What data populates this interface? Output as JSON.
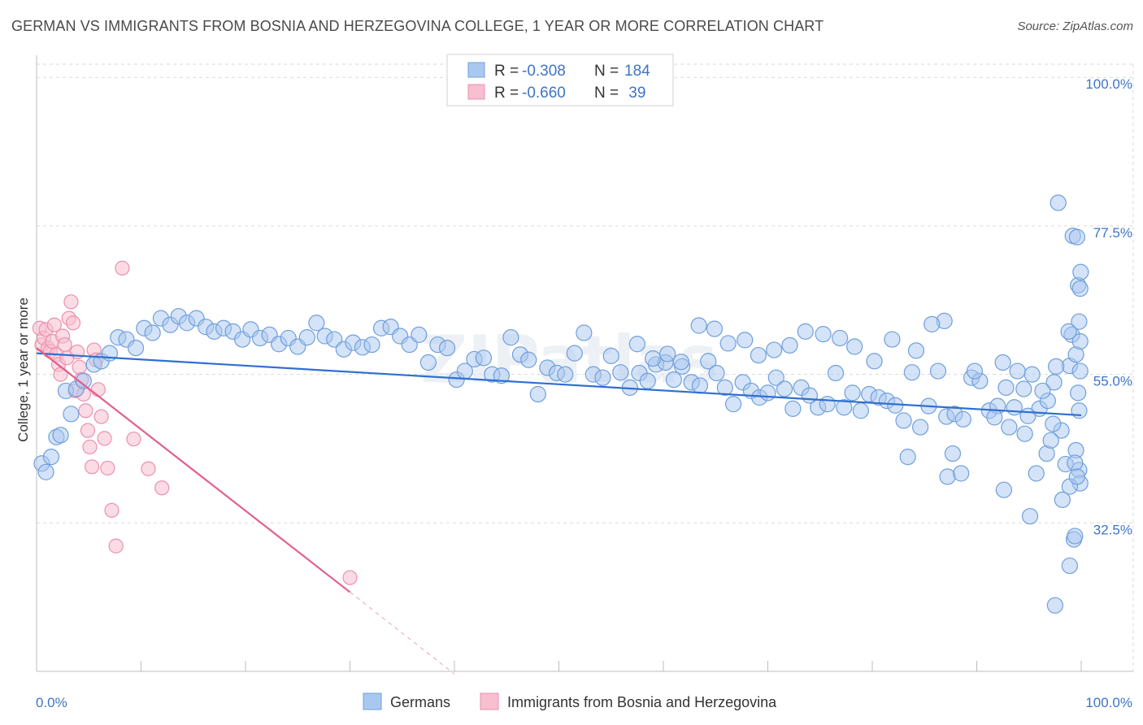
{
  "title": "GERMAN VS IMMIGRANTS FROM BOSNIA AND HERZEGOVINA COLLEGE, 1 YEAR OR MORE CORRELATION CHART",
  "source": "Source: ZipAtlas.com",
  "watermark": "ZIPatlas",
  "colors": {
    "blue_fill": "#a9c8f0",
    "blue_stroke": "#6f9fdc",
    "blue_line": "#2f6fd0",
    "pink_fill": "#f7bfd0",
    "pink_stroke": "#ec8fae",
    "pink_line": "#e2608d",
    "axis_text": "#3f74c6",
    "grid": "#d9d9d9"
  },
  "legend": {
    "rows": [
      {
        "r_label": "R =",
        "r_value": "-0.308",
        "n_label": "N =",
        "n_value": "184"
      },
      {
        "r_label": "R =",
        "r_value": "-0.660",
        "n_label": "N =",
        "n_value": " 39"
      }
    ]
  },
  "bottom_legend": [
    "Germans",
    "Immigrants from Bosnia and Herzegovina"
  ],
  "chart_data": {
    "type": "scatter",
    "title": "GERMAN VS IMMIGRANTS FROM BOSNIA AND HERZEGOVINA COLLEGE, 1 YEAR OR MORE CORRELATION CHART",
    "xlabel": "",
    "ylabel": "College, 1 year or more",
    "xlim": [
      0,
      100
    ],
    "ylim": [
      10,
      102
    ],
    "x_tick_labels": [
      "0.0%",
      "100.0%"
    ],
    "y_ticks": [
      100,
      77.5,
      55,
      32.5
    ],
    "y_tick_labels": [
      "100.0%",
      "77.5%",
      "55.0%",
      "32.5%"
    ],
    "legend_position": "top-center",
    "series": [
      {
        "name": "Germans",
        "color": "#a9c8f0",
        "trend": {
          "x": [
            0,
            100
          ],
          "y": [
            58.2,
            48.8
          ]
        },
        "points": [
          [
            0.5,
            41.5
          ],
          [
            0.9,
            40.2
          ],
          [
            1.4,
            42.5
          ],
          [
            1.9,
            45.5
          ],
          [
            2.3,
            45.8
          ],
          [
            2.8,
            52.5
          ],
          [
            3.3,
            49
          ],
          [
            3.8,
            52.8
          ],
          [
            4.5,
            54
          ],
          [
            5.5,
            56.5
          ],
          [
            6.2,
            57
          ],
          [
            7,
            58.2
          ],
          [
            7.8,
            60.6
          ],
          [
            8.6,
            60.3
          ],
          [
            9.5,
            59
          ],
          [
            10.3,
            62
          ],
          [
            11.1,
            61.3
          ],
          [
            11.9,
            63.5
          ],
          [
            12.8,
            62.5
          ],
          [
            13.6,
            63.8
          ],
          [
            14.4,
            62.8
          ],
          [
            15.3,
            63.5
          ],
          [
            16.2,
            62.2
          ],
          [
            17,
            61.5
          ],
          [
            17.9,
            62
          ],
          [
            18.8,
            61.5
          ],
          [
            19.7,
            60.3
          ],
          [
            20.5,
            61.8
          ],
          [
            21.4,
            60.5
          ],
          [
            22.3,
            61
          ],
          [
            23.2,
            59.6
          ],
          [
            24.1,
            60.5
          ],
          [
            25,
            59.2
          ],
          [
            25.9,
            60.6
          ],
          [
            26.8,
            62.8
          ],
          [
            27.6,
            60.8
          ],
          [
            28.5,
            60.3
          ],
          [
            29.4,
            58.8
          ],
          [
            30.3,
            59.8
          ],
          [
            31.2,
            59.1
          ],
          [
            32.1,
            59.5
          ],
          [
            33,
            62
          ],
          [
            33.9,
            62.2
          ],
          [
            34.8,
            60.8
          ],
          [
            35.7,
            59.5
          ],
          [
            36.6,
            61
          ],
          [
            37.5,
            56.8
          ],
          [
            38.4,
            59.5
          ],
          [
            39.3,
            59
          ],
          [
            40.2,
            54.2
          ],
          [
            41,
            55.5
          ],
          [
            41.9,
            57.3
          ],
          [
            42.8,
            57.5
          ],
          [
            43.6,
            55
          ],
          [
            44.5,
            54.8
          ],
          [
            45.4,
            60.6
          ],
          [
            46.3,
            58
          ],
          [
            47.1,
            57.2
          ],
          [
            48,
            52
          ],
          [
            48.9,
            56
          ],
          [
            49.8,
            55.2
          ],
          [
            50.6,
            55
          ],
          [
            51.5,
            58.2
          ],
          [
            52.4,
            61.3
          ],
          [
            53.3,
            55
          ],
          [
            54.2,
            54.5
          ],
          [
            55,
            57.8
          ],
          [
            55.9,
            55.3
          ],
          [
            56.8,
            53
          ],
          [
            57.7,
            55.2
          ],
          [
            58.5,
            54
          ],
          [
            59.3,
            56.5
          ],
          [
            60.2,
            56.8
          ],
          [
            61,
            54.2
          ],
          [
            61.8,
            56.2
          ],
          [
            62.7,
            53.8
          ],
          [
            63.5,
            53.3
          ],
          [
            64.3,
            57
          ],
          [
            65.1,
            55.2
          ],
          [
            65.9,
            53
          ],
          [
            66.7,
            50.5
          ],
          [
            67.6,
            53.8
          ],
          [
            68.4,
            52.5
          ],
          [
            69.2,
            51.5
          ],
          [
            70,
            52.2
          ],
          [
            70.8,
            54.5
          ],
          [
            71.6,
            52.8
          ],
          [
            72.4,
            49.8
          ],
          [
            73.2,
            53
          ],
          [
            74,
            51.8
          ],
          [
            74.8,
            50
          ],
          [
            75.7,
            50.5
          ],
          [
            76.5,
            55.2
          ],
          [
            77.3,
            50
          ],
          [
            78.1,
            52.2
          ],
          [
            78.9,
            49.5
          ],
          [
            79.7,
            52
          ],
          [
            80.6,
            51.5
          ],
          [
            81.4,
            51
          ],
          [
            82.2,
            50.3
          ],
          [
            83,
            48
          ],
          [
            83.8,
            55.3
          ],
          [
            84.6,
            47
          ],
          [
            85.4,
            50.2
          ],
          [
            86.3,
            55.5
          ],
          [
            87.1,
            48.6
          ],
          [
            87.9,
            49
          ],
          [
            88.7,
            48.2
          ],
          [
            89.5,
            54.5
          ],
          [
            90.3,
            54
          ],
          [
            91.2,
            49.5
          ],
          [
            92,
            50.2
          ],
          [
            92.8,
            53
          ],
          [
            93.6,
            50
          ],
          [
            94.5,
            52.8
          ],
          [
            95.3,
            55
          ],
          [
            96,
            49.8
          ],
          [
            96.8,
            51
          ],
          [
            97.4,
            53.8
          ],
          [
            98.1,
            46.5
          ],
          [
            98.9,
            56.3
          ],
          [
            99.5,
            43.5
          ],
          [
            99.8,
            40.5
          ],
          [
            99.9,
            38.5
          ],
          [
            83.4,
            42.5
          ],
          [
            87.2,
            39.5
          ],
          [
            92.5,
            56.8
          ],
          [
            93.9,
            55.5
          ],
          [
            94.6,
            46
          ],
          [
            96.3,
            52.5
          ],
          [
            98.5,
            41.4
          ],
          [
            98.9,
            38
          ],
          [
            99.4,
            41.6
          ],
          [
            99.6,
            39.5
          ],
          [
            87.7,
            43
          ],
          [
            89.8,
            55.5
          ],
          [
            91.7,
            48.5
          ],
          [
            93.1,
            47
          ],
          [
            94.9,
            48.7
          ],
          [
            96.7,
            43
          ],
          [
            97.6,
            56.2
          ],
          [
            98.2,
            36
          ],
          [
            98.9,
            26
          ],
          [
            99.3,
            30
          ],
          [
            88.5,
            40
          ],
          [
            92.6,
            37.5
          ],
          [
            95.7,
            40
          ],
          [
            97.1,
            45
          ],
          [
            99.1,
            61
          ],
          [
            99.5,
            58
          ],
          [
            97.8,
            81
          ],
          [
            99.2,
            76
          ],
          [
            99.6,
            75.8
          ],
          [
            99.7,
            68.5
          ],
          [
            99.8,
            63
          ],
          [
            99.9,
            60
          ],
          [
            99.9,
            55.5
          ],
          [
            99.7,
            52.2
          ],
          [
            99.8,
            49.5
          ],
          [
            99.9,
            68
          ],
          [
            99.95,
            70.5
          ],
          [
            98.8,
            61.5
          ],
          [
            97.3,
            47.5
          ],
          [
            95.1,
            33.5
          ],
          [
            99.4,
            30.5
          ],
          [
            97.5,
            20
          ],
          [
            84.2,
            58.6
          ],
          [
            86.9,
            63.1
          ],
          [
            85.7,
            62.6
          ],
          [
            81.9,
            60.3
          ],
          [
            80.2,
            57
          ],
          [
            78.3,
            59.2
          ],
          [
            76.9,
            60.5
          ],
          [
            75.3,
            61.1
          ],
          [
            73.6,
            61.5
          ],
          [
            72.1,
            59.4
          ],
          [
            70.6,
            58.7
          ],
          [
            69.1,
            57.9
          ],
          [
            67.8,
            60.2
          ],
          [
            66.2,
            59.7
          ],
          [
            64.9,
            61.9
          ],
          [
            63.4,
            62.4
          ],
          [
            61.7,
            56.9
          ],
          [
            60.4,
            58.1
          ],
          [
            59.0,
            57.4
          ],
          [
            57.5,
            59.6
          ]
        ]
      },
      {
        "name": "Immigrants from Bosnia and Herzegovina",
        "color": "#f7bfd0",
        "trend": {
          "x": [
            0,
            30
          ],
          "y": [
            59,
            22
          ]
        },
        "trend_dashed": {
          "x": [
            30,
            40
          ],
          "y": [
            22,
            9.6
          ]
        },
        "points": [
          [
            0.3,
            62
          ],
          [
            0.5,
            59.5
          ],
          [
            0.7,
            60.5
          ],
          [
            0.9,
            61.8
          ],
          [
            1.1,
            59
          ],
          [
            1.3,
            58.5
          ],
          [
            1.5,
            60
          ],
          [
            1.7,
            62.5
          ],
          [
            1.9,
            58
          ],
          [
            2.1,
            56.5
          ],
          [
            2.3,
            55
          ],
          [
            2.5,
            60.8
          ],
          [
            2.7,
            59.5
          ],
          [
            2.9,
            57.5
          ],
          [
            3.1,
            63.5
          ],
          [
            3.3,
            66
          ],
          [
            3.5,
            62.8
          ],
          [
            3.7,
            52.5
          ],
          [
            3.9,
            58.4
          ],
          [
            4.1,
            56.1
          ],
          [
            4.3,
            54.2
          ],
          [
            4.5,
            52
          ],
          [
            4.7,
            49.5
          ],
          [
            4.9,
            46.5
          ],
          [
            5.1,
            44
          ],
          [
            5.3,
            41
          ],
          [
            5.5,
            58.7
          ],
          [
            5.7,
            57.2
          ],
          [
            5.9,
            52.7
          ],
          [
            6.2,
            48.6
          ],
          [
            6.5,
            45.3
          ],
          [
            6.8,
            40.8
          ],
          [
            7.2,
            34.4
          ],
          [
            7.6,
            29
          ],
          [
            8.2,
            71.1
          ],
          [
            9.3,
            45.2
          ],
          [
            10.7,
            40.7
          ],
          [
            12.0,
            37.8
          ],
          [
            30.0,
            24.2
          ]
        ]
      }
    ]
  }
}
